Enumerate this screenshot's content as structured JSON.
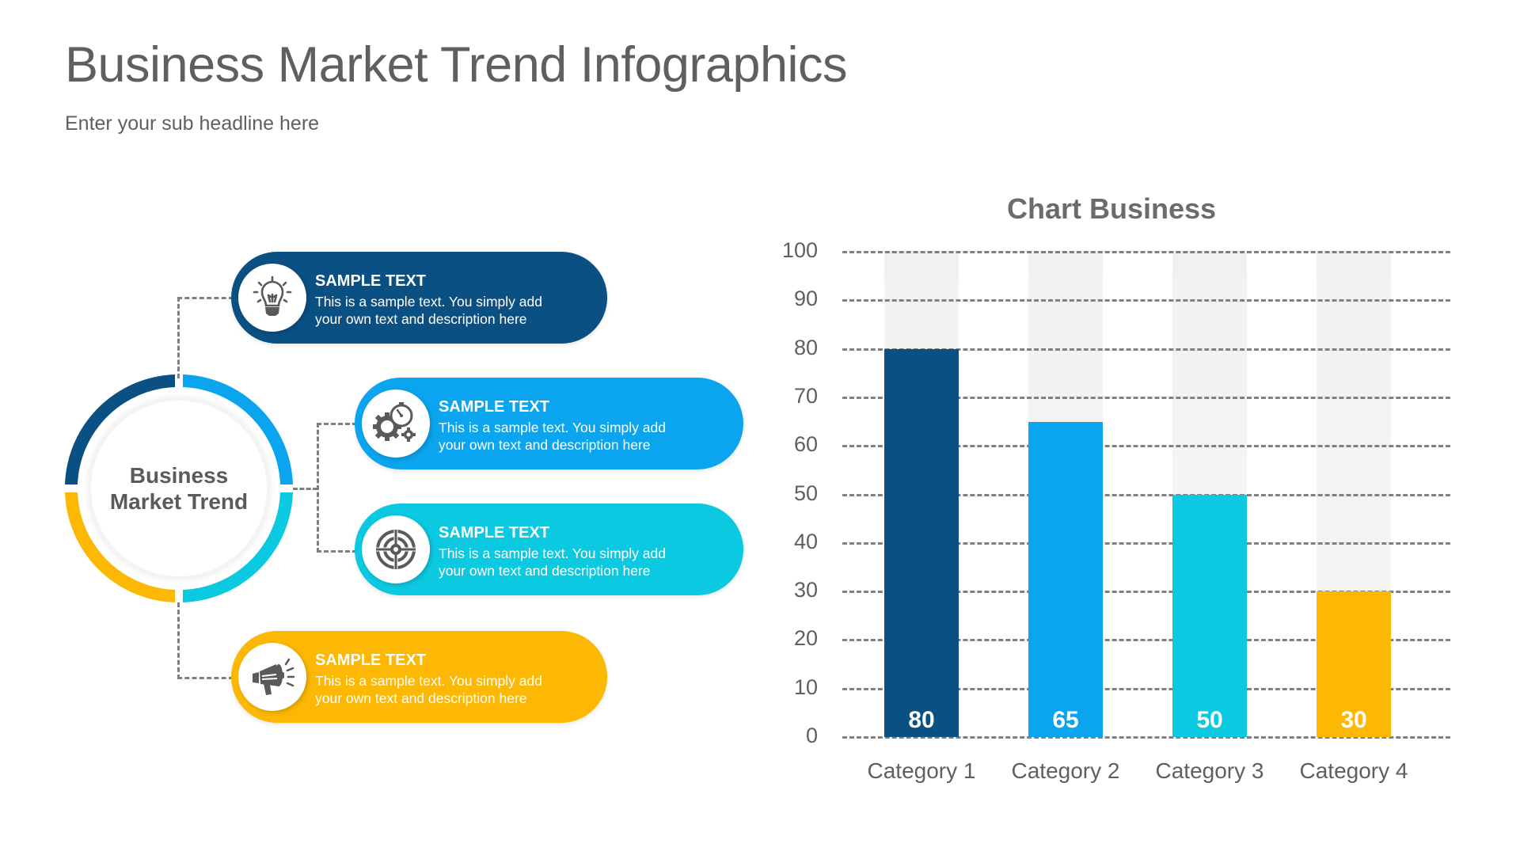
{
  "header": {
    "title": "Business Market Trend Infographics",
    "subtitle": "Enter your sub headline here"
  },
  "diagram": {
    "center_label_line1": "Business",
    "center_label_line2": "Market Trend",
    "ring_colors": [
      "#0b5083",
      "#0aa5ee",
      "#0bc9e0",
      "#fdb804"
    ],
    "cards": [
      {
        "heading": "SAMPLE TEXT",
        "line1": "This is a sample text. You simply add",
        "line2": "your own text and  description here",
        "icon": "lightbulb-icon",
        "color": "#0b5083"
      },
      {
        "heading": "SAMPLE TEXT",
        "line1": "This is a sample text. You simply add",
        "line2": "your own text and  description here",
        "icon": "gears-stopwatch-icon",
        "color": "#0aa5ee"
      },
      {
        "heading": "SAMPLE TEXT",
        "line1": "This is a sample text. You simply add",
        "line2": "your own text and  description here",
        "icon": "target-icon",
        "color": "#0bc9e0"
      },
      {
        "heading": "SAMPLE TEXT",
        "line1": "This is a sample text. You simply add",
        "line2": "your own text and  description here",
        "icon": "megaphone-icon",
        "color": "#fdb804"
      }
    ]
  },
  "chart_data": {
    "type": "bar",
    "title": "Chart Business",
    "categories": [
      "Category 1",
      "Category 2",
      "Category 3",
      "Category 4"
    ],
    "values": [
      80,
      65,
      50,
      30
    ],
    "value_labels": [
      "80",
      "65",
      "50",
      "30"
    ],
    "colors": [
      "#0b5083",
      "#0aa5ee",
      "#0bc9e0",
      "#fdb804"
    ],
    "background_bar_max": 100,
    "xlabel": "",
    "ylabel": "",
    "ylim": [
      0,
      100
    ],
    "yticks": [
      "100",
      "90",
      "80",
      "70",
      "60",
      "50",
      "40",
      "30",
      "20",
      "10",
      "0"
    ],
    "grid": "dashed horizontal",
    "legend": "none"
  }
}
